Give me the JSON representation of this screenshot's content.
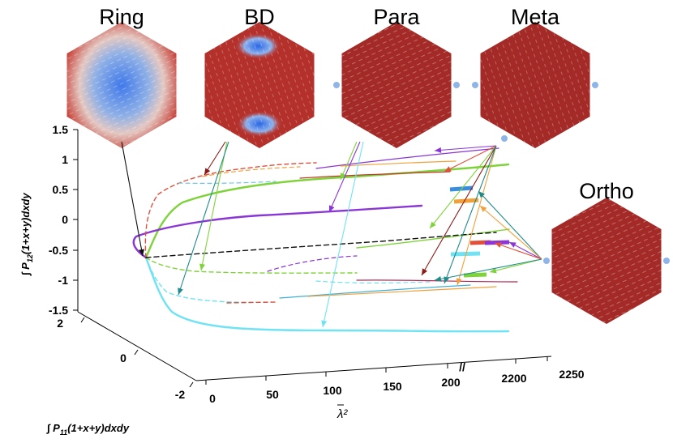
{
  "chart_data": {
    "type": "line3d",
    "title": "",
    "panels": [
      {
        "id": "ring",
        "label": "Ring",
        "color": "#c4433b",
        "core": "#3a7cf0"
      },
      {
        "id": "bd",
        "label": "BD",
        "color": "#b4302b",
        "core": "#3a7cf0"
      },
      {
        "id": "para",
        "label": "Para",
        "color": "#a32a26",
        "core": "#8fb4e8"
      },
      {
        "id": "meta",
        "label": "Meta",
        "color": "#a32a26",
        "core": "#8fb4e8"
      },
      {
        "id": "ortho",
        "label": "Ortho",
        "color": "#a32a26",
        "core": "#8fb4e8"
      }
    ],
    "axes": {
      "z_label": "∫ P12(1+x+y)dxdy",
      "z_label_main": "∫ P",
      "z_label_sub": "12",
      "z_label_rest": "(1+x+y)dxdy",
      "z_ticks": [
        "1.5",
        "1",
        "0.5",
        "0",
        "-0.5",
        "-1",
        "-1.5"
      ],
      "y_label": "∫ P11(1+x+y)dxdy",
      "y_label_main": "∫ P",
      "y_label_sub": "11",
      "y_label_rest": "(1+x+y)dxdy",
      "y_ticks": [
        "2",
        "0",
        "-2"
      ],
      "x_label": "λ²",
      "x_ticks": [
        "0",
        "50",
        "100",
        "150",
        "200",
        "2200",
        "2250"
      ],
      "x_break": "//"
    },
    "series": [
      {
        "name": "cyan",
        "color": "#6fe3f3"
      },
      {
        "name": "green",
        "color": "#7fd33a"
      },
      {
        "name": "purple",
        "color": "#8a35d6"
      },
      {
        "name": "red",
        "color": "#e0503a"
      },
      {
        "name": "black",
        "color": "#111111"
      }
    ]
  }
}
